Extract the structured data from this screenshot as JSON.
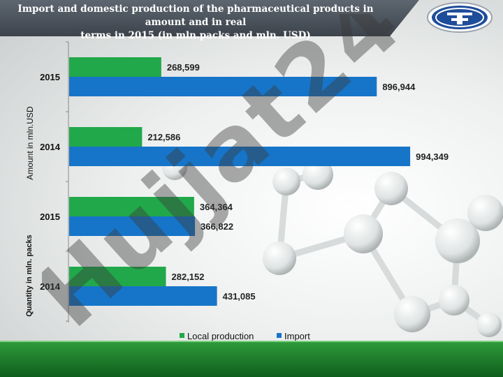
{
  "header": {
    "title_line1": "Import and domestic production of the pharmaceutical products in amount and in real",
    "title_line2": "terms in 2015  (in mln.packs and mln. USD)"
  },
  "logo": {
    "icon": "company-emblem-icon"
  },
  "watermark": {
    "text": "Hujjat24"
  },
  "colors": {
    "local": "#21a84a",
    "import": "#1675c9",
    "title_bg": "#4a525b",
    "footer": "#1a7a2a"
  },
  "chart_data": {
    "type": "bar",
    "orientation": "horizontal",
    "title": "Import and domestic production of the pharmaceutical products in amount and in real terms in 2015  (in mln.packs and mln. USD)",
    "groups": [
      {
        "ylabel": "Amount in mln.USD",
        "categories": [
          "2015",
          "2014"
        ]
      },
      {
        "ylabel": "Quantity in mln. packs",
        "categories": [
          "2015",
          "2014"
        ]
      }
    ],
    "categories": [
      "2015",
      "2014",
      "2015",
      "2014"
    ],
    "series": [
      {
        "name": "Local production",
        "values": [
          268599,
          212586,
          364364,
          282152
        ],
        "labels": [
          "268,599",
          "212,586",
          "364,364",
          "282,152"
        ]
      },
      {
        "name": "Import",
        "values": [
          896944,
          994349,
          366822,
          431085
        ],
        "labels": [
          "896,944",
          "994,349",
          "366,822",
          "431,085"
        ]
      }
    ],
    "xlim": [
      0,
      1100000
    ],
    "legend_position": "bottom",
    "grid": false
  }
}
